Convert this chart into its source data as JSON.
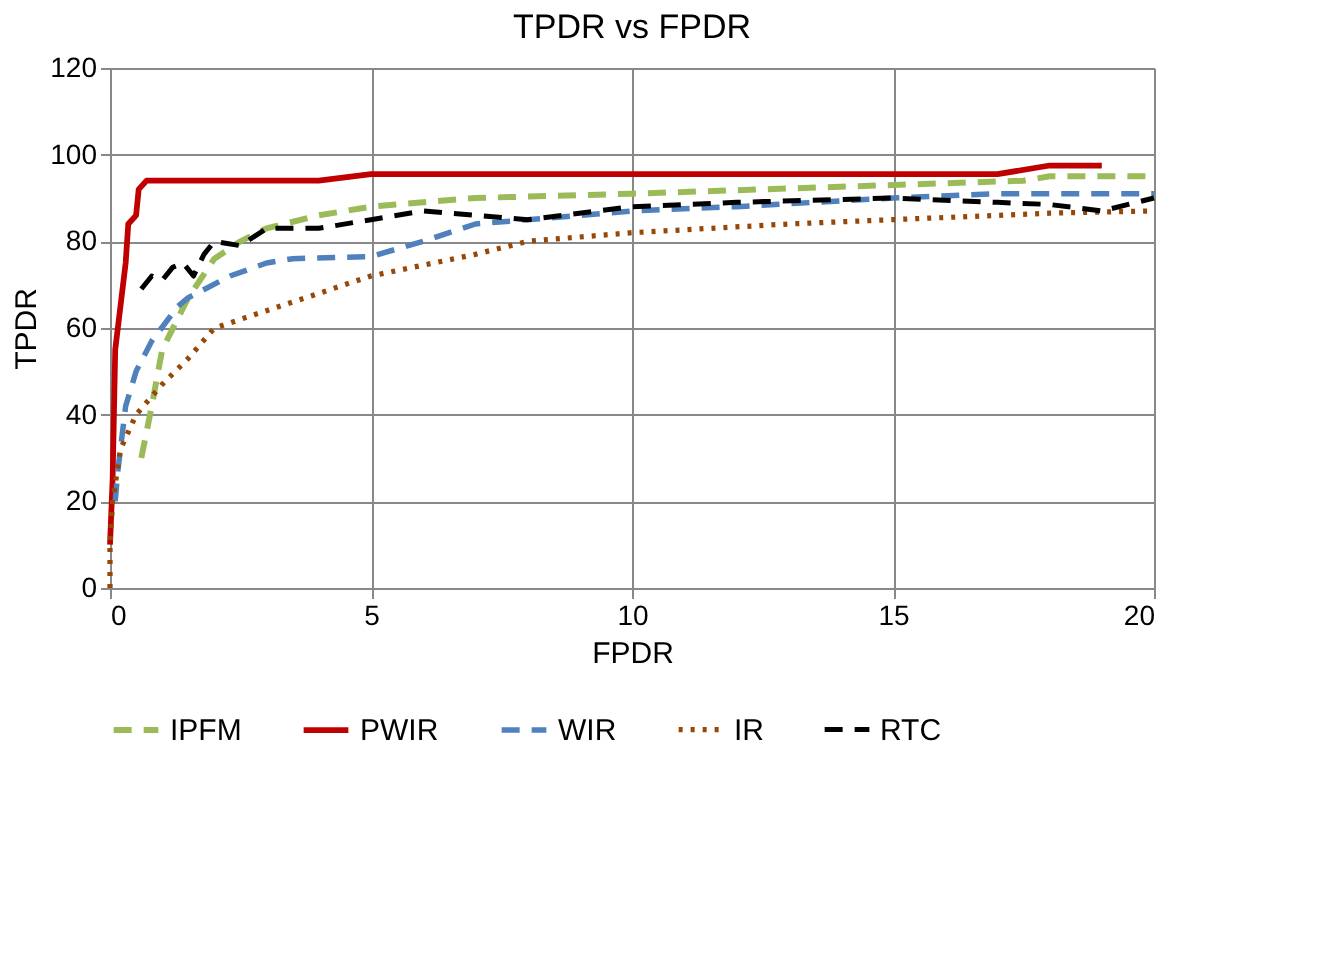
{
  "chart_data": {
    "type": "line",
    "title": "TPDR vs FPDR",
    "xlabel": "FPDR",
    "ylabel": "TPDR",
    "xlim": [
      0,
      20
    ],
    "xticks": [
      0,
      5,
      10,
      15,
      20
    ],
    "ylim": [
      0,
      120
    ],
    "yticks": [
      0,
      20,
      40,
      60,
      80,
      100,
      120
    ],
    "grid": true,
    "legend": "bottom",
    "marker": "none",
    "series": [
      {
        "name": "IPFM",
        "color": "#9bbb59",
        "line_style": "dashed",
        "x": [
          0.6,
          0.8,
          1,
          1.5,
          2,
          2.5,
          3,
          4,
          5,
          7,
          10,
          15,
          17.5,
          18,
          20
        ],
        "values": [
          30,
          42,
          55,
          67,
          76,
          80,
          83,
          86,
          88,
          90,
          91,
          93,
          94,
          95,
          95
        ]
      },
      {
        "name": "PWIR",
        "color": "#c00000",
        "line_style": "solid",
        "x": [
          0,
          0.05,
          0.1,
          0.2,
          0.3,
          0.35,
          0.5,
          0.55,
          0.7,
          2,
          4,
          5,
          10,
          15,
          17,
          18,
          19
        ],
        "values": [
          10,
          25,
          55,
          65,
          75,
          84,
          86,
          92,
          94,
          94,
          94,
          95.5,
          95.5,
          95.5,
          95.5,
          97.5,
          97.5
        ]
      },
      {
        "name": "WIR",
        "color": "#4f81bd",
        "line_style": "dashed",
        "x": [
          0.1,
          0.15,
          0.3,
          0.5,
          0.8,
          1.3,
          1.5,
          2.3,
          3,
          3.5,
          5,
          6,
          7,
          10,
          12,
          15,
          17,
          19,
          20
        ],
        "values": [
          20,
          27,
          42,
          50,
          57,
          65,
          67,
          72,
          75,
          76,
          76.5,
          80,
          84,
          87,
          88,
          90,
          91,
          91,
          91
        ]
      },
      {
        "name": "IR",
        "color": "#974706",
        "line_style": "dotted",
        "x": [
          0,
          0,
          0.05,
          0.2,
          0.5,
          1,
          1.5,
          2,
          3,
          4,
          5,
          7,
          8,
          10,
          13,
          15,
          18,
          20
        ],
        "values": [
          0,
          10,
          20,
          32,
          40,
          47,
          53,
          60,
          64,
          68,
          72,
          77,
          80,
          82,
          84,
          85,
          86.5,
          87
        ]
      },
      {
        "name": "RTC",
        "color": "#000000",
        "line_style": "dashed",
        "x": [
          0.6,
          0.8,
          1,
          1.2,
          1.4,
          1.6,
          1.8,
          2,
          2.5,
          3,
          4,
          5,
          6,
          7,
          8,
          10,
          12,
          15,
          17,
          18,
          19,
          20
        ],
        "values": [
          69,
          72,
          71,
          74,
          75,
          72,
          77,
          80,
          79,
          83,
          83,
          85,
          87,
          86,
          85,
          88,
          89,
          90,
          89,
          88.5,
          87,
          90
        ]
      }
    ]
  }
}
